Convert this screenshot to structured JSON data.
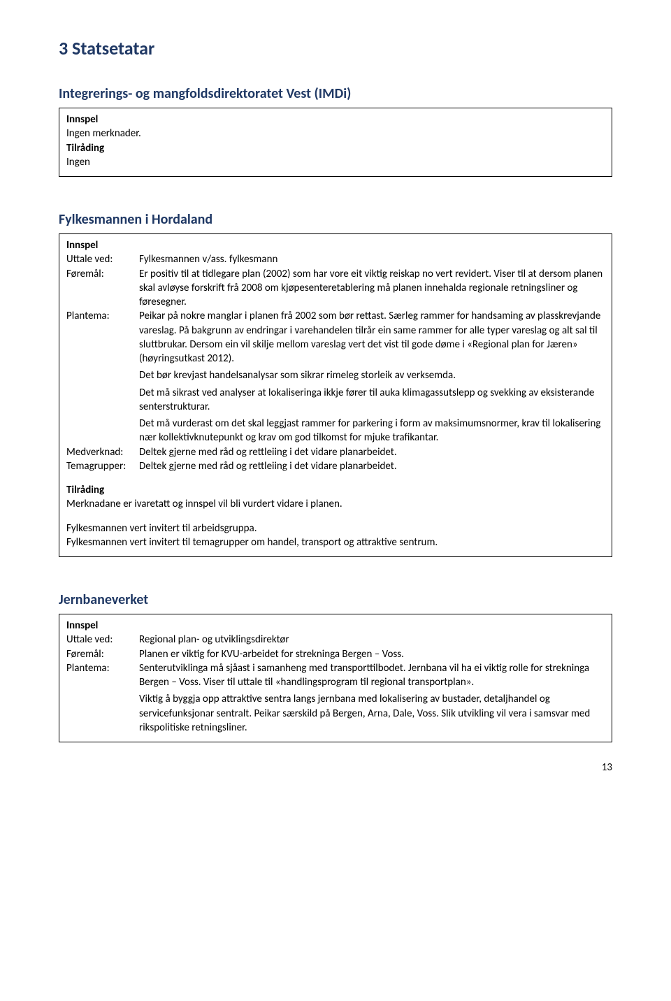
{
  "page": {
    "h1": "3 Statsetatar",
    "page_number": "13"
  },
  "section1": {
    "title": "Integrerings- og mangfoldsdirektoratet Vest (IMDi)",
    "innspel_label": "Innspel",
    "innspel_text": "Ingen merknader.",
    "tilrading_label": "Tilråding",
    "tilrading_text": "Ingen"
  },
  "section2": {
    "title": "Fylkesmannen i Hordaland",
    "innspel_label": "Innspel",
    "uttale_label": "Uttale ved:",
    "uttale_val": "Fylkesmannen v/ass. fylkesmann",
    "foremal_label": "Føremål:",
    "foremal_val": "Er positiv til at tidlegare plan (2002) som har vore eit viktig reiskap no vert revidert. Viser til at dersom planen skal avløyse forskrift frå 2008 om kjøpesenteretablering må planen innehalda regionale retningsliner og føresegner.",
    "plantema_label": "Plantema:",
    "plantema_p1": "Peikar på nokre manglar i planen frå 2002 som bør rettast. Særleg rammer for handsaming av plasskrevjande vareslag. På bakgrunn av endringar i varehandelen tilrår ein same rammer for alle typer vareslag og alt sal til sluttbrukar. Dersom ein vil skilje mellom vareslag vert det vist til gode døme i «Regional plan for Jæren» (høyringsutkast 2012).",
    "plantema_p2": "Det bør krevjast handelsanalysar som sikrar rimeleg storleik av verksemda.",
    "plantema_p3": "Det må sikrast ved analyser at lokaliseringa ikkje fører til auka klimagassutslepp og svekking av eksisterande senterstrukturar.",
    "plantema_p4": "Det må vurderast om det skal leggjast rammer for parkering i form av maksimumsnormer, krav til lokalisering nær kollektivknutepunkt og krav om god tilkomst for mjuke trafikantar.",
    "medverknad_label": "Medverknad:",
    "medverknad_val": "Deltek gjerne med råd og rettleiing i det vidare planarbeidet.",
    "temagrupper_label": "Temagrupper:",
    "temagrupper_val": "Deltek gjerne med råd og rettleiing i det vidare planarbeidet.",
    "tilrading_label": "Tilråding",
    "tilrading_p1": "Merknadane er ivaretatt og innspel vil bli vurdert vidare i planen.",
    "tilrading_p2": "Fylkesmannen vert invitert til arbeidsgruppa.",
    "tilrading_p3": "Fylkesmannen vert invitert til temagrupper om handel, transport og attraktive sentrum."
  },
  "section3": {
    "title": "Jernbaneverket",
    "innspel_label": "Innspel",
    "uttale_label": "Uttale ved:",
    "uttale_val": "Regional plan- og utviklingsdirektør",
    "foremal_label": "Føremål:",
    "foremal_val": "Planen er viktig for KVU-arbeidet for strekninga Bergen – Voss.",
    "plantema_label": "Plantema:",
    "plantema_p1": "Senterutviklinga må sjåast i samanheng med transporttilbodet. Jernbana vil ha ei viktig rolle for strekninga Bergen – Voss. Viser til uttale til «handlingsprogram til regional transportplan».",
    "plantema_p2": "Viktig å byggja opp attraktive sentra langs jernbana med lokalisering av bustader, detaljhandel og servicefunksjonar sentralt. Peikar særskild på Bergen, Arna, Dale, Voss. Slik utvikling vil vera i samsvar med rikspolitiske retningsliner."
  }
}
